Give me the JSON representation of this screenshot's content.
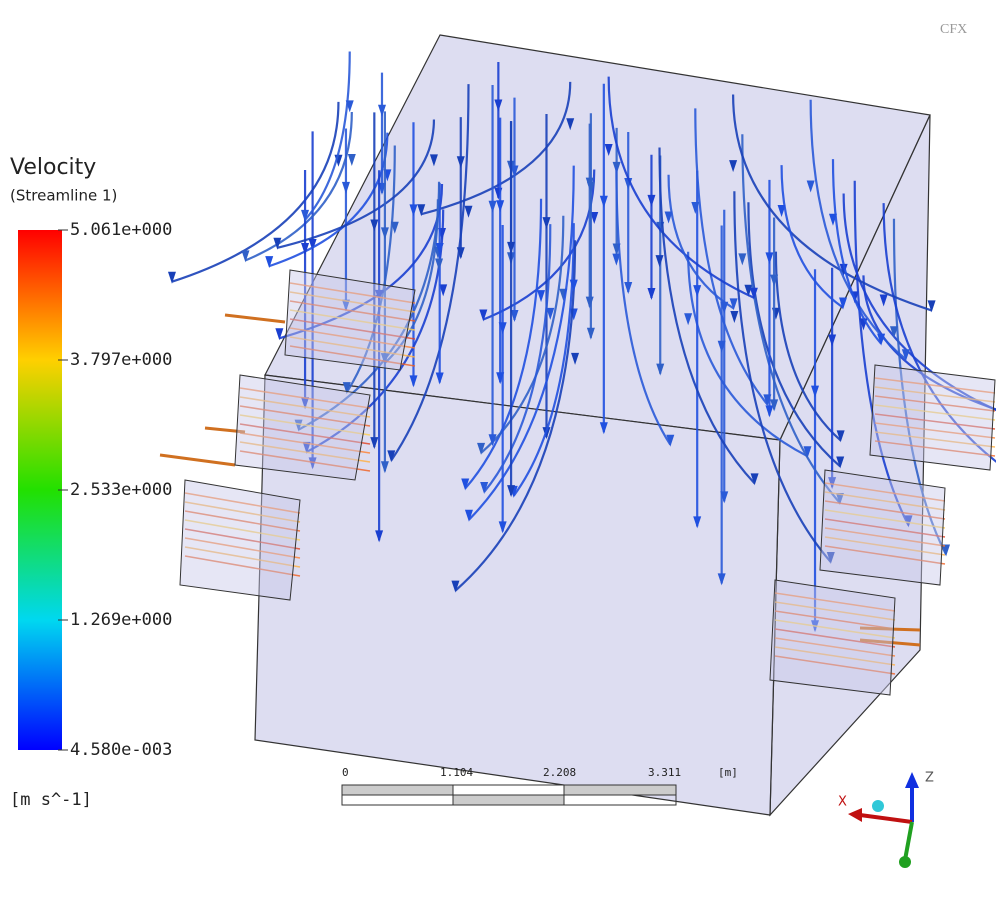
{
  "logo": "CFX",
  "legend": {
    "title": "Velocity",
    "subtitle": "(Streamline 1)",
    "ticks": [
      "5.061e+000",
      "3.797e+000",
      "2.533e+000",
      "1.269e+000",
      "4.580e-003"
    ],
    "units": "[m s^-1]"
  },
  "scale_bar": {
    "ticks": [
      "0",
      "1.104",
      "2.208",
      "3.311"
    ],
    "unit": "[m]"
  },
  "axes": {
    "z": "Z",
    "x": "X"
  }
}
